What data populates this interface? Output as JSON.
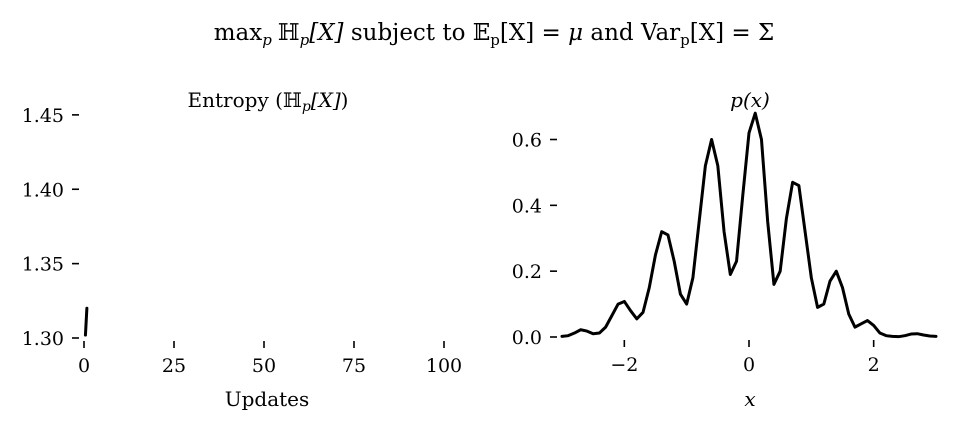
{
  "figure": {
    "title_parts": {
      "max": "max",
      "max_sub": "p",
      "H": "ℍ",
      "H_sub": "p",
      "H_arg": "[X]",
      "st": " subject to ",
      "E": "𝔼",
      "E_sub": "p",
      "E_arg": "[X] = ",
      "mu": "μ",
      "and": " and Var",
      "var_sub": "p",
      "var_arg": "[X] = Σ"
    }
  },
  "chart_data": [
    {
      "type": "line",
      "title_parts": {
        "pre": "Entropy (",
        "H": "ℍ",
        "sub": "p",
        "arg": "[X]",
        "post": ")"
      },
      "xlabel": "Updates",
      "ylabel": "",
      "xlim": [
        0,
        110
      ],
      "ylim": [
        1.3,
        1.46
      ],
      "xticks": [
        0,
        25,
        50,
        75,
        100
      ],
      "xtick_labels": [
        "0",
        "25",
        "50",
        "75",
        "100"
      ],
      "yticks": [
        1.3,
        1.35,
        1.4,
        1.45
      ],
      "ytick_labels": [
        "1.30",
        "1.35",
        "1.40",
        "1.45"
      ],
      "grid": false,
      "series": [
        {
          "x": [
            0.4,
            0.8
          ],
          "y": [
            1.302,
            1.32
          ],
          "color": "#000000"
        }
      ]
    },
    {
      "type": "line",
      "title_parts": {
        "f": "p",
        "arg": "(x)"
      },
      "xlabel": "x",
      "ylabel": "",
      "xlim": [
        -3,
        3
      ],
      "ylim": [
        0,
        0.72
      ],
      "xticks": [
        -2,
        0,
        2
      ],
      "xtick_labels": [
        "−2",
        "0",
        "2"
      ],
      "yticks": [
        0.0,
        0.2,
        0.4,
        0.6
      ],
      "ytick_labels": [
        "0.0",
        "0.2",
        "0.4",
        "0.6"
      ],
      "grid": false,
      "series": [
        {
          "x": [
            -3.0,
            -2.9,
            -2.8,
            -2.7,
            -2.6,
            -2.5,
            -2.4,
            -2.3,
            -2.2,
            -2.1,
            -2.0,
            -1.9,
            -1.8,
            -1.7,
            -1.6,
            -1.5,
            -1.4,
            -1.3,
            -1.2,
            -1.1,
            -1.0,
            -0.9,
            -0.8,
            -0.7,
            -0.6,
            -0.5,
            -0.4,
            -0.3,
            -0.2,
            -0.1,
            0.0,
            0.1,
            0.2,
            0.3,
            0.4,
            0.5,
            0.6,
            0.7,
            0.8,
            0.9,
            1.0,
            1.1,
            1.2,
            1.3,
            1.4,
            1.5,
            1.6,
            1.7,
            1.8,
            1.9,
            2.0,
            2.1,
            2.2,
            2.3,
            2.4,
            2.5,
            2.6,
            2.7,
            2.8,
            2.9,
            3.0
          ],
          "y": [
            0.002,
            0.004,
            0.012,
            0.022,
            0.018,
            0.01,
            0.012,
            0.03,
            0.065,
            0.1,
            0.108,
            0.08,
            0.055,
            0.075,
            0.15,
            0.25,
            0.32,
            0.31,
            0.23,
            0.13,
            0.1,
            0.18,
            0.35,
            0.52,
            0.6,
            0.52,
            0.32,
            0.19,
            0.23,
            0.43,
            0.62,
            0.68,
            0.6,
            0.35,
            0.16,
            0.2,
            0.36,
            0.47,
            0.46,
            0.32,
            0.18,
            0.09,
            0.1,
            0.17,
            0.2,
            0.15,
            0.07,
            0.03,
            0.04,
            0.05,
            0.035,
            0.012,
            0.004,
            0.002,
            0.001,
            0.004,
            0.009,
            0.01,
            0.006,
            0.003,
            0.002
          ],
          "color": "#000000"
        }
      ]
    }
  ]
}
